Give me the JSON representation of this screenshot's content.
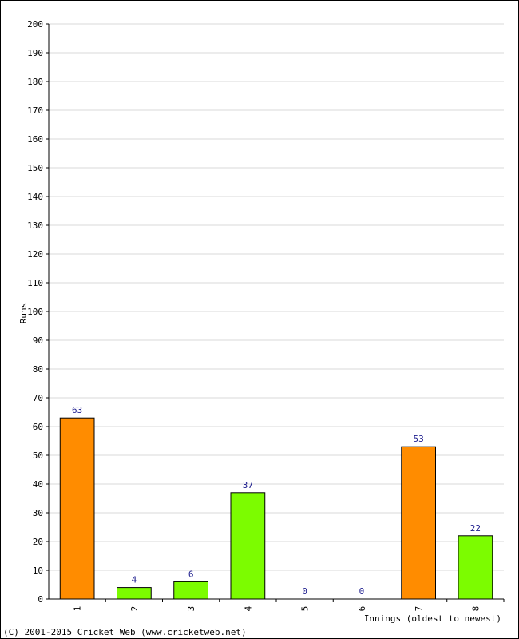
{
  "chart_data": {
    "type": "bar",
    "categories": [
      "1",
      "2",
      "3",
      "4",
      "5",
      "6",
      "7",
      "8"
    ],
    "values": [
      63,
      4,
      6,
      37,
      0,
      0,
      53,
      22
    ],
    "bar_colors": [
      "#ff8c00",
      "#7cfc00",
      "#7cfc00",
      "#7cfc00",
      "#7cfc00",
      "#7cfc00",
      "#ff8c00",
      "#7cfc00"
    ],
    "xlabel": "Innings (oldest to newest)",
    "ylabel": "Runs",
    "ylim": [
      0,
      200
    ],
    "ytick_step": 10,
    "grid": true,
    "legend": "none"
  },
  "colors": {
    "highlight_bar": "#ff8c00",
    "normal_bar": "#7cfc00",
    "value_label": "#1a1a8c",
    "grid": "#d9d9d9"
  },
  "footer": {
    "copyright": "(C) 2001-2015 Cricket Web (www.cricketweb.net)"
  }
}
